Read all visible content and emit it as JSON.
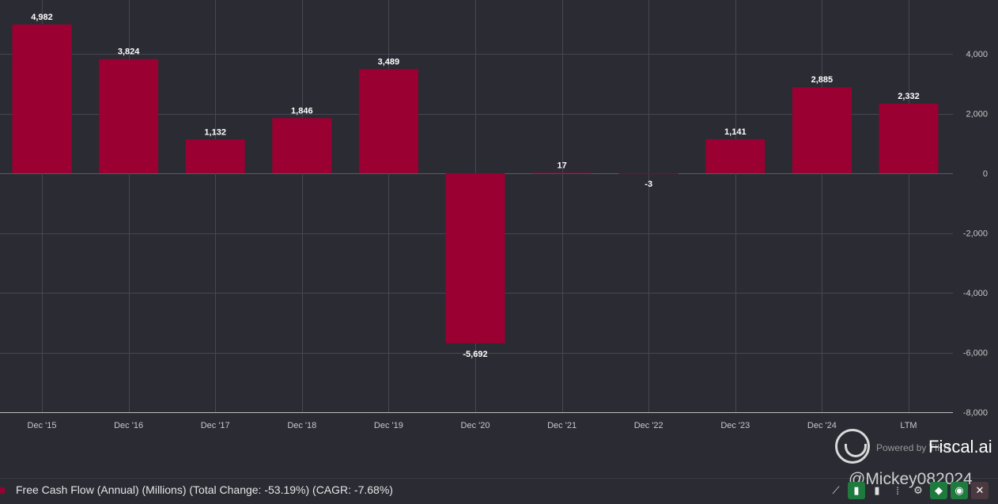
{
  "chart_data": {
    "type": "bar",
    "categories": [
      "Dec '15",
      "Dec '16",
      "Dec '17",
      "Dec '18",
      "Dec '19",
      "Dec '20",
      "Dec '21",
      "Dec '22",
      "Dec '23",
      "Dec '24",
      "LTM"
    ],
    "series": [
      {
        "values": [
          4982,
          3824,
          1132,
          1846,
          3489,
          -5692,
          17,
          -3,
          1141,
          2885,
          2332
        ]
      }
    ],
    "data_labels": [
      "4,982",
      "3,824",
      "1,132",
      "1,846",
      "3,489",
      "-5,692",
      "17",
      "-3",
      "1,141",
      "2,885",
      "2,332"
    ],
    "ylim": [
      -8000,
      5500
    ],
    "y_ticks": [
      -8000,
      -6000,
      -4000,
      -2000,
      0,
      2000,
      4000
    ],
    "y_tick_labels": [
      "-8,000",
      "-6,000",
      "-4,000",
      "-2,000",
      "0",
      "2,000",
      "4,000"
    ],
    "y_axis_side": "right",
    "grid": true,
    "colors": {
      "bar": "#9b0032",
      "background": "#2a2b33",
      "grid": "#464752"
    }
  },
  "legend": {
    "text": "Free Cash Flow (Annual) (Millions) (Total Change: -53.19%) (CAGR: -7.68%)",
    "color": "#9b0032"
  },
  "branding": {
    "small_text": "Powered by TIKR",
    "name": "Fiscal.ai",
    "logo_icon": "tiger-logo-icon"
  },
  "watermark": "@Mickey082024",
  "toolbar": {
    "icons": [
      "trend-line-icon",
      "bar-chart-icon",
      "column-chart-icon",
      "more-icon",
      "gear-icon",
      "tag-icon",
      "eye-icon",
      "close-icon"
    ],
    "glyphs": [
      "⟋",
      "▮",
      "▮",
      "⁞",
      "⚙",
      "◆",
      "◉",
      "✕"
    ]
  }
}
